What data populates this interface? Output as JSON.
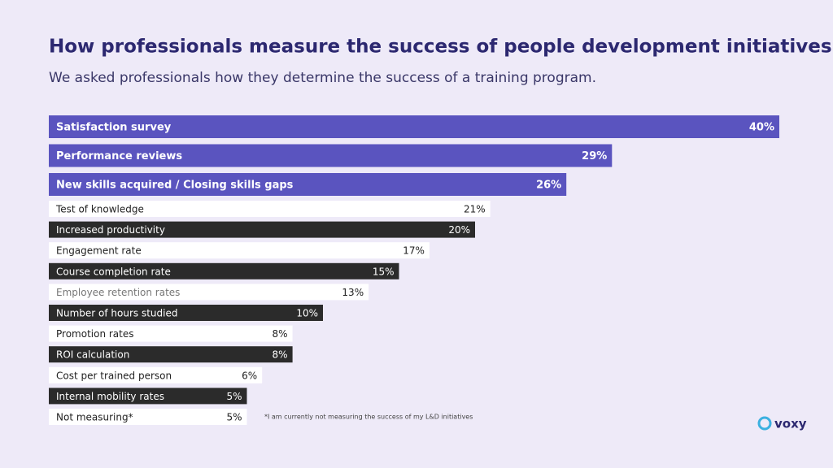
{
  "chart_data": {
    "type": "bar",
    "title": "How professionals measure the success of people development initiatives",
    "subtitle": "We asked professionals how they determine the success of a training program.",
    "categories": [
      "Satisfaction survey",
      "Performance reviews",
      "New skills acquired / Closing skills gaps",
      "Test of knowledge",
      "Increased productivity",
      "Engagement rate",
      "Course completion rate",
      "Employee retention rates",
      "Number of hours studied",
      "Promotion rates",
      "ROI calculation",
      "Cost per trained person",
      "Internal mobility rates",
      "Not measuring*"
    ],
    "values": [
      40,
      29,
      26,
      21,
      20,
      17,
      15,
      13,
      10,
      8,
      8,
      6,
      5,
      5
    ],
    "value_labels": [
      "40%",
      "29%",
      "26%",
      "21%",
      "20%",
      "17%",
      "15%",
      "13%",
      "10%",
      "8%",
      "8%",
      "6%",
      "5%",
      "5%"
    ],
    "colors": [
      "#5a54bf",
      "#5a54bf",
      "#5a54bf",
      "#ffffff",
      "#2b2b2b",
      "#ffffff",
      "#2b2b2b",
      "#ffffff",
      "#2b2b2b",
      "#ffffff",
      "#2b2b2b",
      "#ffffff",
      "#2b2b2b",
      "#ffffff"
    ],
    "footnote": "*I am currently not measuring the success of my L&D initiatives",
    "brand": "voxy"
  }
}
